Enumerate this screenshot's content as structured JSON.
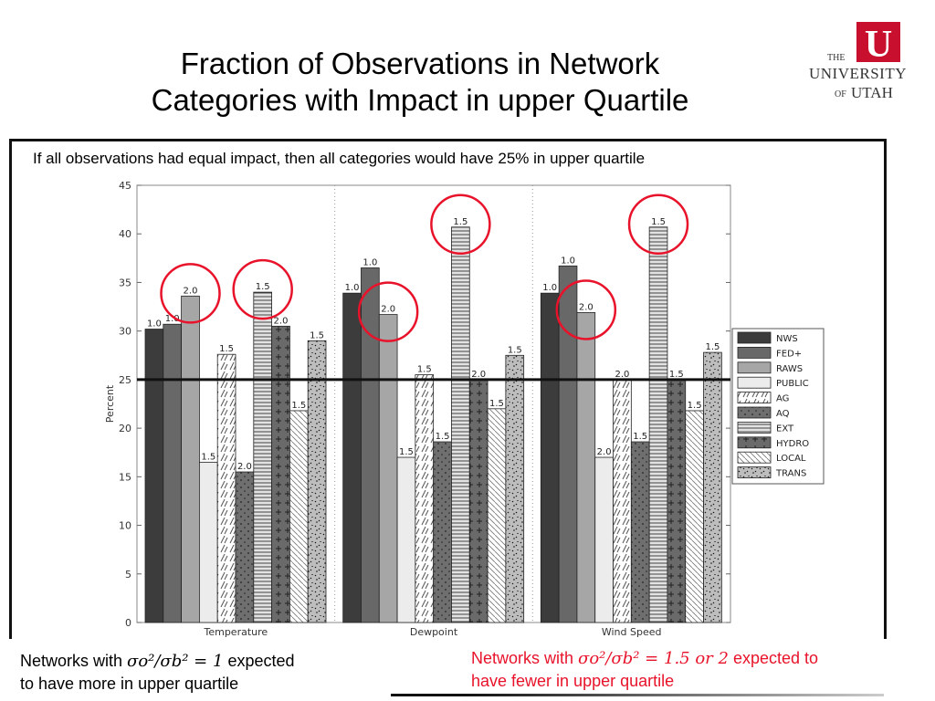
{
  "slide": {
    "title_line1": "Fraction of Observations in Network",
    "title_line2": "Categories with Impact in upper Quartile",
    "note": "If all observations had equal impact, then all categories would have 25% in upper quartile",
    "footer_left_pre": "Networks with ",
    "footer_left_math": "σo²/σb² = 1",
    "footer_left_post": " expected",
    "footer_left_line2": "to have more in upper quartile",
    "footer_right_pre": "Networks with ",
    "footer_right_math": "σo²/σb² = 1.5 or 2",
    "footer_right_post": " expected to",
    "footer_right_line2": "have fewer in upper quartile",
    "brand_color": "#c8102e",
    "highlight_color": "#e8132a"
  },
  "logo": {
    "letter": "U",
    "the": "THE",
    "university": "UNIVERSITY",
    "of": "OF",
    "utah": "UTAH"
  },
  "chart_data": {
    "type": "bar",
    "ylabel": "Percent",
    "ylim": [
      0,
      45
    ],
    "yticks": [
      0,
      5,
      10,
      15,
      20,
      25,
      30,
      35,
      40,
      45
    ],
    "reference_line": 25,
    "grid": "vertical dotted separators between groups",
    "legend_position": "right",
    "categories": [
      "Temperature",
      "Dewpoint",
      "Wind Speed"
    ],
    "series": [
      {
        "name": "NWS",
        "values": [
          30.2,
          33.9,
          33.9
        ],
        "labels": [
          "1.0",
          "1.0",
          "1.0"
        ]
      },
      {
        "name": "FED+",
        "values": [
          30.7,
          36.5,
          36.7
        ],
        "labels": [
          "1.0",
          "1.0",
          "1.0"
        ]
      },
      {
        "name": "RAWS",
        "values": [
          33.6,
          31.7,
          31.9
        ],
        "labels": [
          "2.0",
          "2.0",
          "2.0"
        ]
      },
      {
        "name": "PUBLIC",
        "values": [
          16.5,
          17.0,
          17.0
        ],
        "labels": [
          "1.5",
          "1.5",
          "2.0"
        ]
      },
      {
        "name": "AG",
        "values": [
          27.6,
          25.5,
          25.0
        ],
        "labels": [
          "1.5",
          "1.5",
          "2.0"
        ]
      },
      {
        "name": "AQ",
        "values": [
          15.5,
          18.6,
          18.6
        ],
        "labels": [
          "2.0",
          "1.5",
          "1.5"
        ]
      },
      {
        "name": "EXT",
        "values": [
          34.0,
          40.7,
          40.7
        ],
        "labels": [
          "1.5",
          "1.5",
          "1.5"
        ]
      },
      {
        "name": "HYDRO",
        "values": [
          30.5,
          25.0,
          25.0
        ],
        "labels": [
          "2.0",
          "2.0",
          "1.5"
        ]
      },
      {
        "name": "LOCAL",
        "values": [
          21.8,
          22.0,
          21.8
        ],
        "labels": [
          "1.5",
          "1.5",
          "1.5"
        ]
      },
      {
        "name": "TRANS",
        "values": [
          29.0,
          27.5,
          27.8
        ],
        "labels": [
          "1.5",
          "1.5",
          "1.5"
        ]
      }
    ],
    "circled": [
      {
        "series": "RAWS",
        "category": "Temperature"
      },
      {
        "series": "EXT",
        "category": "Temperature"
      },
      {
        "series": "RAWS",
        "category": "Dewpoint"
      },
      {
        "series": "EXT",
        "category": "Dewpoint"
      },
      {
        "series": "RAWS",
        "category": "Wind Speed"
      },
      {
        "series": "EXT",
        "category": "Wind Speed"
      }
    ]
  }
}
